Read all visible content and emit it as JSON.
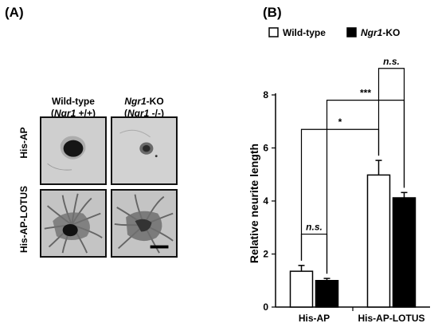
{
  "panels": {
    "a": "(A)",
    "b": "(B)"
  },
  "micrographs": {
    "columns": [
      {
        "line1_name": "Wild-type",
        "line2_prefix": "(",
        "line2_gene": "Ngr1",
        "line2_suffix": " +/+)"
      },
      {
        "line1_gene": "Ngr1",
        "line1_rest": "-KO",
        "line2_prefix": "(",
        "line2_gene": "Ngr1",
        "line2_suffix": " -/-)"
      }
    ],
    "rows": [
      "His-AP",
      "His-AP-LOTUS"
    ],
    "colors": {
      "background": "#c9c9c9",
      "explant": "#1a1a1a",
      "neurite": "#5a5a5a"
    }
  },
  "chart_data": {
    "type": "bar",
    "categories": [
      "His-AP",
      "His-AP-LOTUS"
    ],
    "series": [
      {
        "name": "Wild-type",
        "gene": "",
        "name_rest": "",
        "fill": "#ffffff",
        "values": [
          1.35,
          4.98
        ],
        "errors": [
          0.22,
          0.55
        ]
      },
      {
        "name": "",
        "gene": "Ngr1",
        "name_rest": "-KO",
        "fill": "#000000",
        "values": [
          1.0,
          4.12
        ],
        "errors": [
          0.08,
          0.2
        ]
      }
    ],
    "ylabel": "Relative neurite length",
    "ylim": [
      0,
      8
    ],
    "yticks": [
      0,
      2,
      4,
      6,
      8
    ],
    "legend": "top",
    "significance": [
      {
        "label": "n.s.",
        "italic": true,
        "from": [
          0,
          0
        ],
        "to": [
          0,
          1
        ]
      },
      {
        "label": "n.s.",
        "italic": true,
        "from": [
          1,
          0
        ],
        "to": [
          1,
          1
        ]
      },
      {
        "label": "*",
        "italic": false,
        "from": [
          0,
          0
        ],
        "to": [
          1,
          0
        ]
      },
      {
        "label": "***",
        "italic": false,
        "from": [
          0,
          1
        ],
        "to": [
          1,
          1
        ]
      }
    ]
  }
}
